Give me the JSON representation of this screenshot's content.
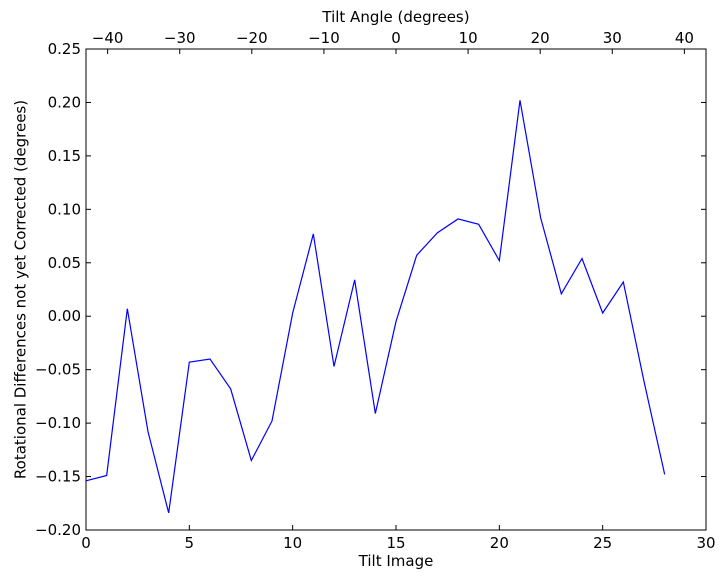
{
  "chart_data": {
    "type": "line",
    "title": "",
    "xlabel": "Tilt Image",
    "ylabel": "Rotational Differences not yet Corrected (degrees)",
    "x2label": "Tilt Angle (degrees)",
    "xlim": [
      0,
      30
    ],
    "ylim": [
      -0.2,
      0.25
    ],
    "x2lim": [
      -43,
      43
    ],
    "xticks": [
      0,
      5,
      10,
      15,
      20,
      25,
      30
    ],
    "xtick_labels": [
      "0",
      "5",
      "10",
      "15",
      "20",
      "25",
      "30"
    ],
    "yticks": [
      -0.2,
      -0.15,
      -0.1,
      -0.05,
      0.0,
      0.05,
      0.1,
      0.15,
      0.2,
      0.25
    ],
    "ytick_labels": [
      "−0.20",
      "−0.15",
      "−0.10",
      "−0.05",
      "0.00",
      "0.05",
      "0.10",
      "0.15",
      "0.20",
      "0.25"
    ],
    "x2ticks": [
      -40,
      -30,
      -20,
      -10,
      0,
      10,
      20,
      30,
      40
    ],
    "x2tick_labels": [
      "−40",
      "−30",
      "−20",
      "−10",
      "0",
      "10",
      "20",
      "30",
      "40"
    ],
    "grid": false,
    "line_color": "#0000ff",
    "series": [
      {
        "x": [
          0,
          1,
          2,
          3,
          4,
          5,
          6,
          7,
          8,
          9,
          10,
          11,
          12,
          13,
          14,
          15,
          16,
          17,
          18,
          19,
          20,
          21,
          22,
          23,
          24,
          25,
          26,
          27,
          28
        ],
        "values": [
          -0.154,
          -0.149,
          0.007,
          -0.108,
          -0.184,
          -0.043,
          -0.04,
          -0.068,
          -0.135,
          -0.098,
          0.003,
          0.077,
          -0.047,
          0.034,
          -0.091,
          -0.005,
          0.057,
          0.078,
          0.091,
          0.086,
          0.052,
          0.202,
          0.092,
          0.021,
          0.054,
          0.003,
          0.032,
          -0.061,
          -0.148
        ]
      }
    ]
  }
}
